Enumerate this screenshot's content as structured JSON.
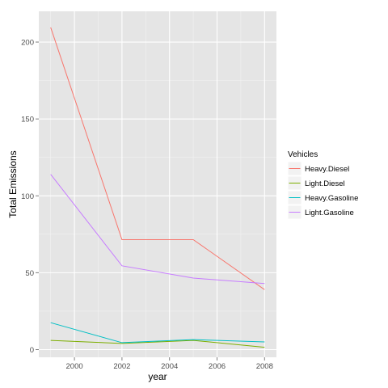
{
  "chart_data": {
    "type": "line",
    "xlabel": "year",
    "ylabel": "Total Emissions",
    "x": [
      1999,
      2002,
      2005,
      2008
    ],
    "xlim": [
      1998.5,
      2008.5
    ],
    "ylim": [
      -5,
      220
    ],
    "x_ticks": [
      2000,
      2002,
      2004,
      2006,
      2008
    ],
    "y_ticks": [
      0,
      50,
      100,
      150,
      200
    ],
    "grid": true,
    "legend": {
      "title": "Vehicles",
      "position": "right"
    },
    "series": [
      {
        "name": "Heavy.Diesel",
        "color": "#F8766D",
        "values": [
          209.5,
          71.5,
          71.5,
          39.0
        ]
      },
      {
        "name": "Light.Diesel",
        "color": "#7CAE00",
        "values": [
          6.0,
          4.0,
          6.0,
          1.5
        ]
      },
      {
        "name": "Heavy.Gasoline",
        "color": "#00BFC4",
        "values": [
          17.5,
          4.5,
          6.5,
          5.0
        ]
      },
      {
        "name": "Light.Gasoline",
        "color": "#C77CFF",
        "values": [
          114.0,
          54.5,
          46.5,
          43.0
        ]
      }
    ]
  }
}
